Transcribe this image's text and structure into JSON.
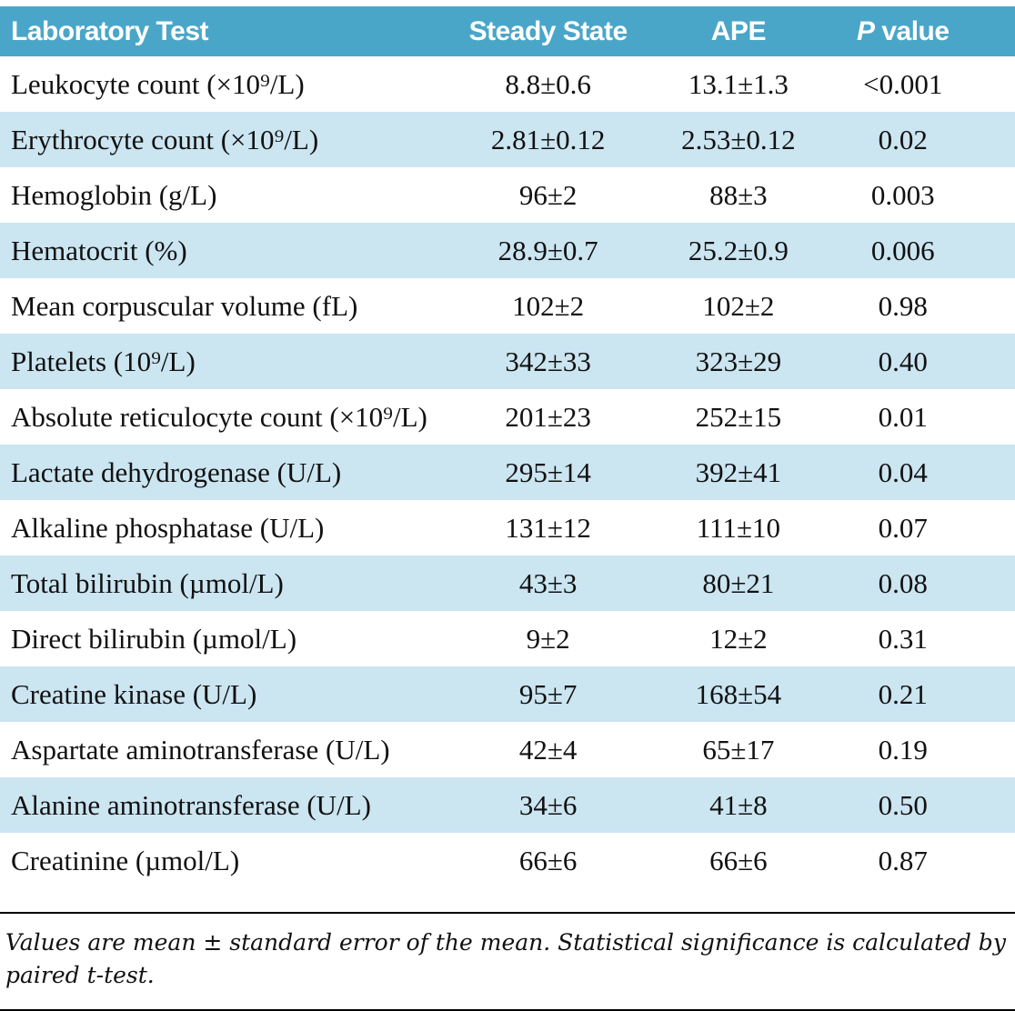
{
  "colors": {
    "header_bg": "#4aa6c8",
    "header_text": "#ffffff",
    "row_alt_bg": "#cbe5f1",
    "body_text": "#111111",
    "rule": "#000000"
  },
  "table": {
    "columns": [
      "Laboratory Test",
      "Steady State",
      "APE"
    ],
    "p_header": {
      "symbol": "P",
      "rest": " value"
    },
    "rows": [
      {
        "test": "Leukocyte count (×10⁹/L)",
        "steady_state": "8.8±0.6",
        "ape": "13.1±1.3",
        "p_value": "<0.001"
      },
      {
        "test": "Erythrocyte count (×10⁹/L)",
        "steady_state": "2.81±0.12",
        "ape": "2.53±0.12",
        "p_value": "0.02"
      },
      {
        "test": "Hemoglobin (g/L)",
        "steady_state": "96±2",
        "ape": "88±3",
        "p_value": "0.003"
      },
      {
        "test": "Hematocrit (%)",
        "steady_state": "28.9±0.7",
        "ape": "25.2±0.9",
        "p_value": "0.006"
      },
      {
        "test": "Mean corpuscular volume (fL)",
        "steady_state": "102±2",
        "ape": "102±2",
        "p_value": "0.98"
      },
      {
        "test": "Platelets (10⁹/L)",
        "steady_state": "342±33",
        "ape": "323±29",
        "p_value": "0.40"
      },
      {
        "test": "Absolute reticulocyte count (×10⁹/L)",
        "steady_state": "201±23",
        "ape": "252±15",
        "p_value": "0.01"
      },
      {
        "test": "Lactate dehydrogenase (U/L)",
        "steady_state": "295±14",
        "ape": "392±41",
        "p_value": "0.04"
      },
      {
        "test": "Alkaline phosphatase (U/L)",
        "steady_state": "131±12",
        "ape": "111±10",
        "p_value": "0.07"
      },
      {
        "test": "Total bilirubin (µmol/L)",
        "steady_state": "43±3",
        "ape": "80±21",
        "p_value": "0.08"
      },
      {
        "test": "Direct bilirubin (µmol/L)",
        "steady_state": "9±2",
        "ape": "12±2",
        "p_value": "0.31"
      },
      {
        "test": "Creatine kinase (U/L)",
        "steady_state": "95±7",
        "ape": "168±54",
        "p_value": "0.21"
      },
      {
        "test": "Aspartate aminotransferase (U/L)",
        "steady_state": "42±4",
        "ape": "65±17",
        "p_value": "0.19"
      },
      {
        "test": "Alanine aminotransferase (U/L)",
        "steady_state": "34±6",
        "ape": "41±8",
        "p_value": "0.50"
      },
      {
        "test": "Creatinine (µmol/L)",
        "steady_state": "66±6",
        "ape": "66±6",
        "p_value": "0.87"
      }
    ]
  },
  "footnote": "Values are mean ± standard error of the mean. Statistical significance is calculated by paired t-test."
}
